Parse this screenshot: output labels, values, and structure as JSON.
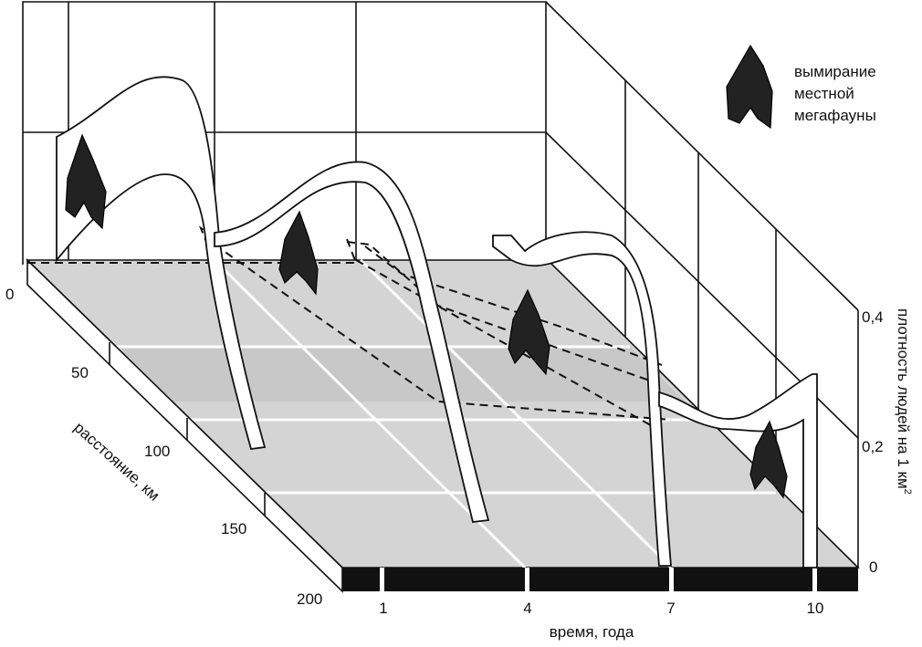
{
  "legend": {
    "lines": [
      "вымирание",
      "местной",
      "мегафауны"
    ]
  },
  "axes": {
    "distance": {
      "label": "расстояние, км",
      "ticks": [
        "0",
        "50",
        "100",
        "150",
        "200"
      ]
    },
    "time": {
      "label": "время, года",
      "ticks": [
        "1",
        "4",
        "7",
        "10"
      ]
    },
    "density": {
      "label": "плотность людей на 1 км",
      "superscript": "2",
      "ticks": [
        "0,4",
        "0,2",
        "0"
      ]
    }
  }
}
